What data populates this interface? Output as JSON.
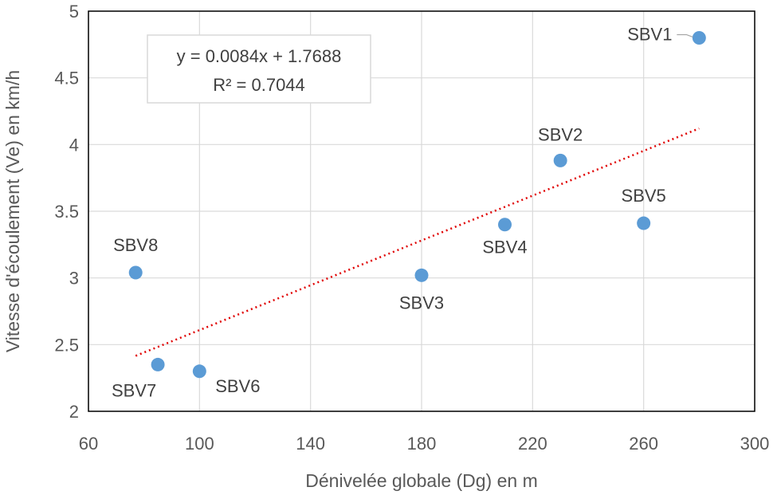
{
  "chart_data": {
    "type": "scatter",
    "title": "",
    "xlabel": "Dénivelée globale (Dg) en m",
    "ylabel": "Vitesse d'écoulement (Ve) en km/h",
    "xlim": [
      60,
      300
    ],
    "ylim": [
      2,
      5
    ],
    "x_ticks": [
      60,
      100,
      140,
      180,
      220,
      260,
      300
    ],
    "y_ticks": [
      2,
      2.5,
      3,
      3.5,
      4,
      4.5,
      5
    ],
    "x_tick_labels": [
      "60",
      "100",
      "140",
      "180",
      "220",
      "260",
      "300"
    ],
    "y_tick_labels": [
      "2",
      "2.5",
      "3",
      "3.5",
      "4",
      "4.5",
      "5"
    ],
    "grid": true,
    "marker_color": "#5B9BD5",
    "trend_color": "#E00000",
    "points": [
      {
        "label": "SBV1",
        "x": 280,
        "y": 4.8
      },
      {
        "label": "SBV2",
        "x": 230,
        "y": 3.88
      },
      {
        "label": "SBV3",
        "x": 180,
        "y": 3.02
      },
      {
        "label": "SBV4",
        "x": 210,
        "y": 3.4
      },
      {
        "label": "SBV5",
        "x": 260,
        "y": 3.41
      },
      {
        "label": "SBV6",
        "x": 100,
        "y": 2.3
      },
      {
        "label": "SBV7",
        "x": 85,
        "y": 2.35
      },
      {
        "label": "SBV8",
        "x": 77,
        "y": 3.04
      }
    ],
    "trendline": {
      "type": "linear",
      "slope": 0.0084,
      "intercept": 1.7688,
      "x_range": [
        77,
        280
      ],
      "equation": "y = 0.0084x + 1.7688",
      "r_squared": "R² = 0.7044"
    }
  }
}
